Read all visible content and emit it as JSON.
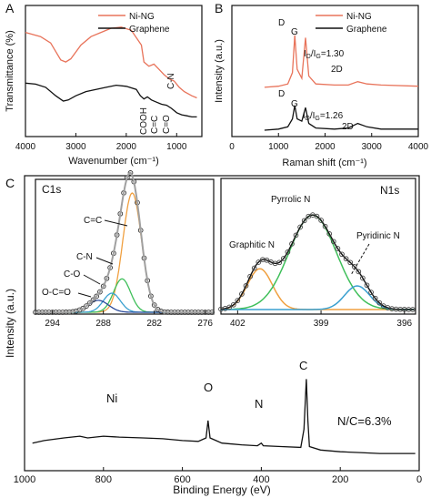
{
  "figure": {
    "panel_labels": [
      "A",
      "B",
      "C"
    ]
  },
  "colors": {
    "ni_ng": "#e8735a",
    "graphene": "#111111",
    "fit_c1": "#a0a0a0",
    "orange": "#f0a040",
    "green": "#3fbf5a",
    "blue": "#3aa0d0",
    "dark_blue": "#2a4a9a",
    "fit_total": "#111111"
  },
  "chart_data": [
    {
      "id": "A",
      "type": "line",
      "xlabel": "Wavenumber (cm⁻¹)",
      "ylabel": "Transmittance (%)",
      "xlim": [
        4000,
        500
      ],
      "reversed_x": true,
      "x_ticks": [
        4000,
        3000,
        2000,
        1000
      ],
      "legend": [
        "Ni-NG",
        "Graphene"
      ],
      "legend_position": "top-right",
      "annotations": [
        "C-N",
        "COOH",
        "C=C",
        "C=O"
      ],
      "series": [
        {
          "name": "Ni-NG",
          "points": [
            [
              4000,
              0.9
            ],
            [
              3700,
              0.86
            ],
            [
              3500,
              0.8
            ],
            [
              3300,
              0.64
            ],
            [
              3200,
              0.62
            ],
            [
              3100,
              0.65
            ],
            [
              2900,
              0.78
            ],
            [
              2700,
              0.86
            ],
            [
              2500,
              0.9
            ],
            [
              2300,
              0.94
            ],
            [
              2100,
              0.95
            ],
            [
              1900,
              0.92
            ],
            [
              1700,
              0.78
            ],
            [
              1650,
              0.62
            ],
            [
              1550,
              0.58
            ],
            [
              1450,
              0.6
            ],
            [
              1350,
              0.55
            ],
            [
              1250,
              0.5
            ],
            [
              1150,
              0.46
            ],
            [
              1050,
              0.44
            ],
            [
              950,
              0.38
            ],
            [
              850,
              0.34
            ],
            [
              700,
              0.3
            ],
            [
              600,
              0.28
            ]
          ]
        },
        {
          "name": "Graphene",
          "points": [
            [
              4000,
              0.42
            ],
            [
              3800,
              0.41
            ],
            [
              3600,
              0.38
            ],
            [
              3400,
              0.3
            ],
            [
              3250,
              0.25
            ],
            [
              3150,
              0.26
            ],
            [
              3000,
              0.3
            ],
            [
              2800,
              0.34
            ],
            [
              2600,
              0.36
            ],
            [
              2400,
              0.38
            ],
            [
              2200,
              0.4
            ],
            [
              2000,
              0.39
            ],
            [
              1800,
              0.36
            ],
            [
              1720,
              0.3
            ],
            [
              1650,
              0.27
            ],
            [
              1580,
              0.29
            ],
            [
              1500,
              0.26
            ],
            [
              1400,
              0.24
            ],
            [
              1300,
              0.22
            ],
            [
              1200,
              0.21
            ],
            [
              1100,
              0.18
            ],
            [
              1000,
              0.14
            ],
            [
              900,
              0.12
            ],
            [
              800,
              0.11
            ],
            [
              700,
              0.1
            ],
            [
              600,
              0.1
            ]
          ]
        }
      ]
    },
    {
      "id": "B",
      "type": "line",
      "xlabel": "Raman shift (cm⁻¹)",
      "ylabel": "Intensity (a.u.)",
      "xlim": [
        0,
        4000
      ],
      "x_ticks": [
        0,
        1000,
        2000,
        3000,
        4000
      ],
      "legend": [
        "Ni-NG",
        "Graphene"
      ],
      "legend_position": "top-right",
      "annotations": {
        "ni_ng": {
          "D": "D",
          "G": "G",
          "ratio_base": "I",
          "ratio_sub1": "D",
          "ratio_sep": "/I",
          "ratio_sub2": "G",
          "ratio_value": "=1.30",
          "2d": "2D"
        },
        "graphene": {
          "D": "D",
          "G": "G",
          "ratio_base": "I",
          "ratio_sub1": "D",
          "ratio_sep": "/I",
          "ratio_sub2": "G",
          "ratio_value": "=1.26",
          "2d": "2D"
        }
      },
      "series": [
        {
          "name": "Ni-NG",
          "points": [
            [
              700,
              0.42
            ],
            [
              1000,
              0.43
            ],
            [
              1200,
              0.45
            ],
            [
              1300,
              0.55
            ],
            [
              1350,
              0.88
            ],
            [
              1400,
              0.58
            ],
            [
              1500,
              0.5
            ],
            [
              1580,
              0.86
            ],
            [
              1650,
              0.52
            ],
            [
              1800,
              0.45
            ],
            [
              2200,
              0.44
            ],
            [
              2500,
              0.44
            ],
            [
              2700,
              0.47
            ],
            [
              2900,
              0.45
            ],
            [
              3200,
              0.44
            ],
            [
              4000,
              0.43
            ]
          ]
        },
        {
          "name": "Graphene",
          "points": [
            [
              700,
              0.04
            ],
            [
              1000,
              0.05
            ],
            [
              1200,
              0.07
            ],
            [
              1300,
              0.14
            ],
            [
              1350,
              0.26
            ],
            [
              1400,
              0.14
            ],
            [
              1500,
              0.12
            ],
            [
              1580,
              0.24
            ],
            [
              1650,
              0.1
            ],
            [
              1800,
              0.06
            ],
            [
              2200,
              0.05
            ],
            [
              2500,
              0.06
            ],
            [
              2700,
              0.1
            ],
            [
              2900,
              0.07
            ],
            [
              3200,
              0.05
            ],
            [
              4000,
              0.05
            ]
          ]
        }
      ]
    },
    {
      "id": "C_survey",
      "type": "line",
      "xlabel": "Binding Energy (eV)",
      "ylabel": "Intensity (a.u.)",
      "xlim": [
        1000,
        0
      ],
      "x_ticks": [
        1000,
        800,
        600,
        400,
        200,
        0
      ],
      "annotations": [
        "Ni",
        "O",
        "N",
        "C",
        "N/C=6.3%"
      ],
      "series": [
        {
          "name": "Survey",
          "points": [
            [
              980,
              0.14
            ],
            [
              950,
              0.17
            ],
            [
              900,
              0.2
            ],
            [
              860,
              0.22
            ],
            [
              840,
              0.2
            ],
            [
              800,
              0.22
            ],
            [
              760,
              0.21
            ],
            [
              700,
              0.2
            ],
            [
              650,
              0.19
            ],
            [
              600,
              0.17
            ],
            [
              560,
              0.16
            ],
            [
              540,
              0.2
            ],
            [
              535,
              0.4
            ],
            [
              530,
              0.2
            ],
            [
              500,
              0.14
            ],
            [
              450,
              0.12
            ],
            [
              410,
              0.11
            ],
            [
              400,
              0.14
            ],
            [
              395,
              0.11
            ],
            [
              350,
              0.1
            ],
            [
              300,
              0.09
            ],
            [
              292,
              0.3
            ],
            [
              286,
              0.88
            ],
            [
              282,
              0.4
            ],
            [
              278,
              0.1
            ],
            [
              250,
              0.06
            ],
            [
              200,
              0.04
            ],
            [
              150,
              0.03
            ],
            [
              100,
              0.02
            ],
            [
              50,
              0.02
            ],
            [
              10,
              0.02
            ]
          ]
        }
      ]
    },
    {
      "id": "C1s",
      "type": "line",
      "title": "C1s",
      "xlim": [
        296,
        275
      ],
      "x_ticks": [
        294,
        288,
        282,
        276
      ],
      "annotations": [
        "C=C",
        "C-N",
        "C-O",
        "O-C=O"
      ],
      "components": [
        {
          "name": "C=C",
          "center": 284.6,
          "height": 1.0,
          "width": 1.1
        },
        {
          "name": "C-N",
          "center": 285.8,
          "height": 0.28,
          "width": 1.0
        },
        {
          "name": "C-O",
          "center": 287.0,
          "height": 0.16,
          "width": 1.0
        },
        {
          "name": "O-C=O",
          "center": 288.6,
          "height": 0.1,
          "width": 1.2
        }
      ]
    },
    {
      "id": "N1s",
      "type": "line",
      "title": "N1s",
      "xlim": [
        402.6,
        395.6
      ],
      "x_ticks": [
        402,
        399,
        396
      ],
      "annotations": [
        "Graphitic N",
        "Pyrrolic N",
        "Pyridinic N"
      ],
      "components": [
        {
          "name": "Graphitic N",
          "center": 401.2,
          "height": 0.38,
          "width": 0.45
        },
        {
          "name": "Pyrrolic N",
          "center": 399.3,
          "height": 0.88,
          "width": 0.85
        },
        {
          "name": "Pyridinic N",
          "center": 397.7,
          "height": 0.22,
          "width": 0.45
        }
      ]
    }
  ]
}
